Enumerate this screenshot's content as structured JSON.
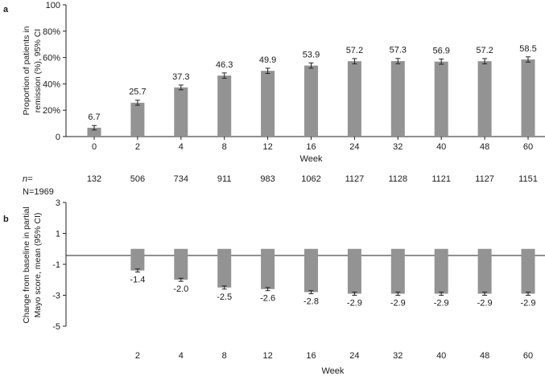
{
  "chart_data": [
    {
      "type": "bar",
      "panel_label": "a",
      "ylabel_lines": [
        "Proportion of patients in",
        "remission (%), 95% CI"
      ],
      "xlabel": "Week",
      "categories": [
        "0",
        "2",
        "4",
        "8",
        "12",
        "16",
        "24",
        "32",
        "40",
        "48",
        "60"
      ],
      "values": [
        6.7,
        25.7,
        37.3,
        46.3,
        49.9,
        53.9,
        57.2,
        57.3,
        56.9,
        57.2,
        58.5
      ],
      "value_labels": [
        "6.7",
        "25.7",
        "37.3",
        "46.3",
        "49.9",
        "53.9",
        "57.2",
        "57.3",
        "56.9",
        "57.2",
        "58.5"
      ],
      "ci_lower": [
        5.0,
        23.8,
        35.5,
        44.3,
        47.9,
        51.9,
        55.2,
        55.3,
        54.9,
        55.2,
        56.5
      ],
      "ci_upper": [
        8.4,
        27.6,
        39.1,
        48.3,
        51.9,
        55.9,
        59.2,
        59.3,
        58.9,
        59.2,
        60.5
      ],
      "ylim": [
        0,
        100
      ],
      "yticks": [
        0,
        20,
        40,
        60,
        80,
        100
      ],
      "ytick_labels": [
        "0",
        "20%",
        "40%",
        "60%",
        "80%",
        "100"
      ],
      "n_label": "n=",
      "n_values": [
        "132",
        "506",
        "734",
        "911",
        "983",
        "1062",
        "1127",
        "1128",
        "1121",
        "1127",
        "1151"
      ],
      "N_label": "N=1969",
      "bar_color": "#939393"
    },
    {
      "type": "bar",
      "panel_label": "b",
      "ylabel_lines": [
        "Change from baseline in partial",
        "Mayo score, mean (95% CI)"
      ],
      "xlabel": "Week",
      "categories": [
        "2",
        "4",
        "8",
        "12",
        "16",
        "24",
        "32",
        "40",
        "48",
        "60"
      ],
      "values": [
        -1.4,
        -2.0,
        -2.5,
        -2.6,
        -2.8,
        -2.9,
        -2.9,
        -2.9,
        -2.9,
        -2.9
      ],
      "value_labels": [
        "-1.4",
        "-2.0",
        "-2.5",
        "-2.6",
        "-2.8",
        "-2.9",
        "-2.9",
        "-2.9",
        "-2.9",
        "-2.9"
      ],
      "ci_lower": [
        -1.5,
        -2.1,
        -2.6,
        -2.7,
        -2.9,
        -3.0,
        -3.0,
        -3.0,
        -3.0,
        -3.0
      ],
      "ci_upper": [
        -1.3,
        -1.9,
        -2.4,
        -2.5,
        -2.7,
        -2.8,
        -2.8,
        -2.8,
        -2.8,
        -2.8
      ],
      "ylim": [
        -5,
        3
      ],
      "yticks": [
        -5,
        -3,
        -1,
        1,
        3
      ],
      "ytick_labels": [
        "-5",
        "-3",
        "-1",
        "1",
        "3"
      ],
      "bar_color": "#939393"
    }
  ]
}
